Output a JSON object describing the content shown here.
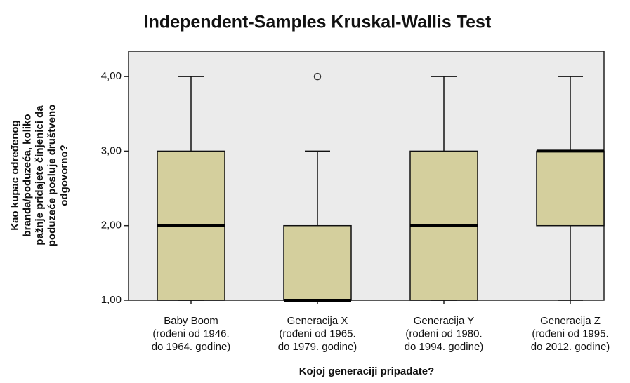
{
  "chart_data": {
    "type": "boxplot",
    "title": "Independent-Samples Kruskal-Wallis Test",
    "x_label": "Kojoj generaciji pripadate?",
    "y_label": [
      "Kao kupac određenog",
      "branda/poduzeća, koliko",
      "pažnje pridajete činjenici da",
      "poduzeće posluje društveno",
      "odgovorno?"
    ],
    "categories": [
      [
        "Baby Boom",
        "(rođeni  od 1946.",
        "do 1964. godine)"
      ],
      [
        "Generacija X",
        "(rođeni od 1965.",
        "do 1979. godine)"
      ],
      [
        "Generacija Y",
        "(rođeni od 1980.",
        "do 1994. godine)"
      ],
      [
        "Generacija Z",
        "(rođeni od 1995.",
        "do 2012. godine)"
      ]
    ],
    "boxes": [
      {
        "min": 1,
        "q1": 1,
        "median": 2,
        "q3": 3,
        "max": 4,
        "outliers": []
      },
      {
        "min": 1,
        "q1": 1,
        "median": 1,
        "q3": 2,
        "max": 3,
        "outliers": [
          4
        ]
      },
      {
        "min": 1,
        "q1": 1,
        "median": 2,
        "q3": 3,
        "max": 4,
        "outliers": []
      },
      {
        "min": 1,
        "q1": 2,
        "median": 3,
        "q3": 3,
        "max": 4,
        "outliers": []
      }
    ],
    "color": "#d4cf9d",
    "background": "#ebebeb",
    "ylim": [
      1,
      4.34
    ],
    "yticks": [
      {
        "value": 1,
        "label": "1,00"
      },
      {
        "value": 2,
        "label": "2,00"
      },
      {
        "value": 3,
        "label": "3,00"
      },
      {
        "value": 4,
        "label": "4,00"
      }
    ]
  }
}
